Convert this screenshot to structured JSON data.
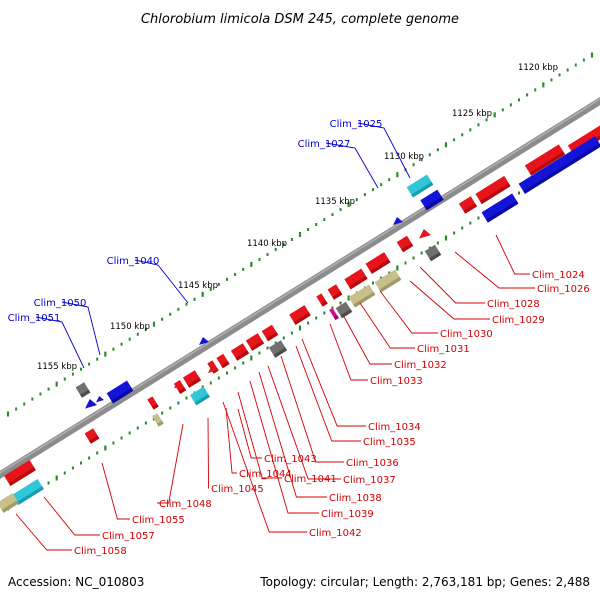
{
  "title": "Chlorobium limicola DSM 245, complete genome",
  "footer": {
    "accession": "Accession: NC_010803",
    "summary": "Topology: circular; Length: 2,763,181 bp; Genes: 2,488"
  },
  "kbp_labels": [
    "1120 kbp",
    "1125 kbp",
    "1130 kbp",
    "1135 kbp",
    "1140 kbp",
    "1145 kbp",
    "1150 kbp",
    "1155 kbp"
  ],
  "forward_labels": [
    "Clim_1025",
    "Clim_1027",
    "Clim_1040",
    "Clim_1050",
    "Clim_1051"
  ],
  "reverse_labels": [
    "Clim_1024",
    "Clim_1026",
    "Clim_1028",
    "Clim_1029",
    "Clim_1030",
    "Clim_1031",
    "Clim_1032",
    "Clim_1033",
    "Clim_1034",
    "Clim_1035",
    "Clim_1036",
    "Clim_1037",
    "Clim_1038",
    "Clim_1039",
    "Clim_1041",
    "Clim_1042",
    "Clim_1043",
    "Clim_1044",
    "Clim_1045",
    "Clim_1048",
    "Clim_1055",
    "Clim_1057",
    "Clim_1058"
  ],
  "colors": {
    "reverse_gene": "#e8141c",
    "forward_gene": "#1414d8",
    "rna": "#30c8d8",
    "pseudo": "#c8c08a",
    "gray_feature": "#707070",
    "backbone": "#8c8c8c",
    "tick": "#2a8a2a",
    "forward_label": "#0000cc",
    "reverse_label": "#d40000"
  }
}
